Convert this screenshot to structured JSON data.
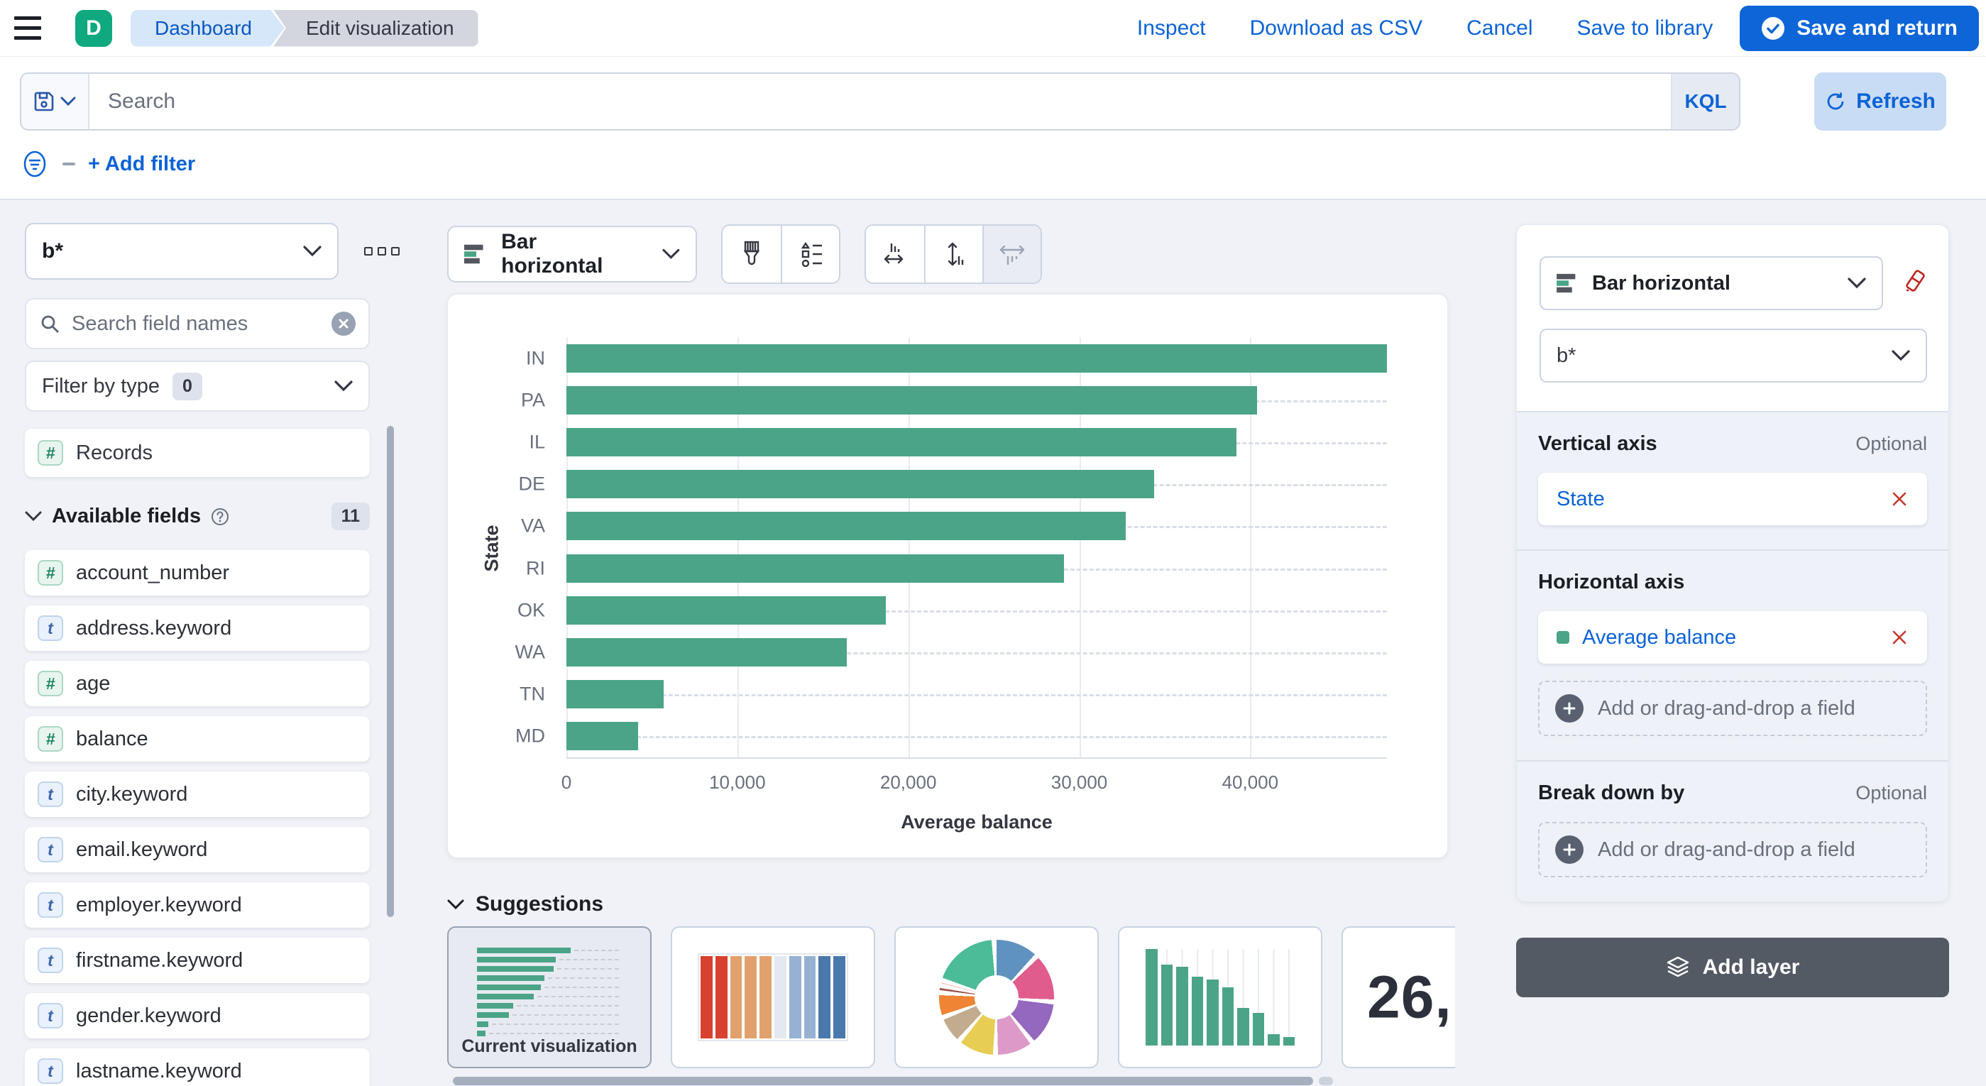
{
  "header": {
    "app_badge": "D",
    "breadcrumbs": [
      "Dashboard",
      "Edit visualization"
    ],
    "actions": [
      "Inspect",
      "Download as CSV",
      "Cancel",
      "Save to library"
    ],
    "save_button": "Save and return"
  },
  "query_bar": {
    "search_placeholder": "Search",
    "language_button": "KQL",
    "refresh_button": "Refresh",
    "add_filter": "+ Add filter"
  },
  "sidebar": {
    "index_pattern": "b*",
    "search_placeholder": "Search field names",
    "filter_by_type_label": "Filter by type",
    "filter_by_type_count": "0",
    "records_field": "Records",
    "available_fields_label": "Available fields",
    "available_fields_count": "11",
    "fields": [
      {
        "name": "account_number",
        "type": "number"
      },
      {
        "name": "address.keyword",
        "type": "text"
      },
      {
        "name": "age",
        "type": "number"
      },
      {
        "name": "balance",
        "type": "number"
      },
      {
        "name": "city.keyword",
        "type": "text"
      },
      {
        "name": "email.keyword",
        "type": "text"
      },
      {
        "name": "employer.keyword",
        "type": "text"
      },
      {
        "name": "firstname.keyword",
        "type": "text"
      },
      {
        "name": "gender.keyword",
        "type": "text"
      },
      {
        "name": "lastname.keyword",
        "type": "text"
      }
    ]
  },
  "toolbar": {
    "chart_type": "Bar horizontal"
  },
  "chart_data": {
    "type": "bar",
    "orientation": "horizontal",
    "categories": [
      "IN",
      "PA",
      "IL",
      "DE",
      "VA",
      "RI",
      "OK",
      "WA",
      "TN",
      "MD"
    ],
    "values": [
      48000,
      40400,
      39200,
      34400,
      32700,
      29100,
      18700,
      16400,
      5700,
      4200
    ],
    "title": "",
    "xlabel": "Average balance",
    "ylabel": "State",
    "xlim": [
      0,
      48000
    ],
    "x_ticks": [
      0,
      10000,
      20000,
      30000,
      40000
    ],
    "x_tick_labels": [
      "0",
      "10,000",
      "20,000",
      "30,000",
      "40,000"
    ],
    "bar_color": "#4ba487",
    "grid": true,
    "legend": false
  },
  "suggestions": {
    "label": "Suggestions",
    "current_label": "Current visualization",
    "metric_preview": "26,",
    "mosaic_colors": [
      "#d8402f",
      "#d8402f",
      "#e2a16c",
      "#e2a16c",
      "#e2a16c",
      "#e4e9f0",
      "#96b1d2",
      "#96b1d2",
      "#4878ac",
      "#4878ac"
    ],
    "donut_slices": [
      {
        "color": "#6092c0",
        "pct": 13
      },
      {
        "color": "#e05c8c",
        "pct": 14
      },
      {
        "color": "#9468be",
        "pct": 13
      },
      {
        "color": "#dd9ac8",
        "pct": 11
      },
      {
        "color": "#e8cd54",
        "pct": 11
      },
      {
        "color": "#c2ab8e",
        "pct": 8
      },
      {
        "color": "#ee8434",
        "pct": 7
      },
      {
        "color": "#9e5148",
        "pct": 2
      },
      {
        "color": "#e8593b",
        "pct": 1.5
      },
      {
        "color": "#4cbb97",
        "pct": 19.5
      }
    ]
  },
  "config_panel": {
    "chart_type": "Bar horizontal",
    "index_pattern": "b*",
    "vertical_axis": {
      "label": "Vertical axis",
      "optional": "Optional",
      "field": "State"
    },
    "horizontal_axis": {
      "label": "Horizontal axis",
      "field": "Average balance",
      "add_placeholder": "Add or drag-and-drop a field"
    },
    "break_down": {
      "label": "Break down by",
      "optional": "Optional",
      "add_placeholder": "Add or drag-and-drop a field"
    },
    "add_layer": "Add layer"
  }
}
